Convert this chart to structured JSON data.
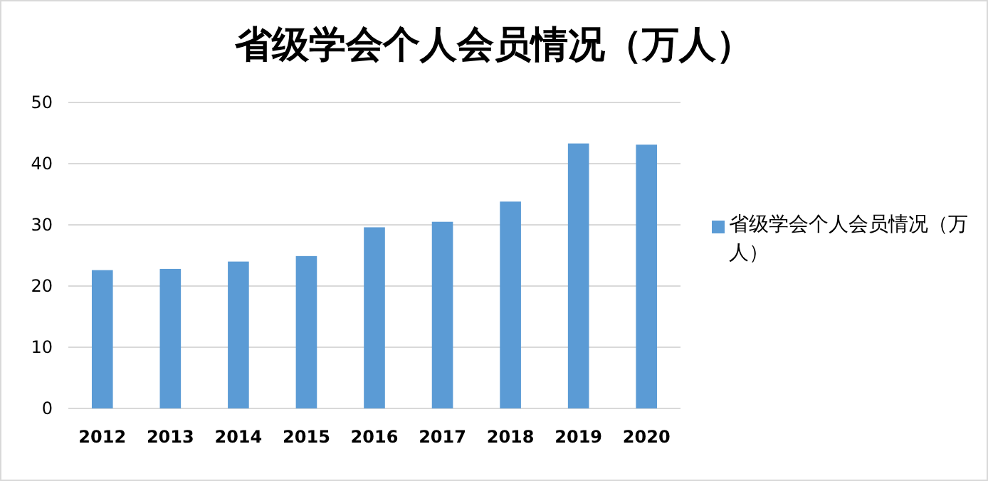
{
  "chart_data": {
    "type": "bar",
    "title": "省级学会个人会员情况（万人）",
    "categories": [
      "2012",
      "2013",
      "2014",
      "2015",
      "2016",
      "2017",
      "2018",
      "2019",
      "2020"
    ],
    "series": [
      {
        "name": "省级学会个人会员情况（万人）",
        "color": "#5b9bd5",
        "values": [
          22.6,
          22.8,
          24.0,
          24.9,
          29.6,
          30.5,
          33.8,
          43.3,
          43.1
        ]
      }
    ],
    "ylim": [
      0,
      50
    ],
    "yticks": [
      0,
      10,
      20,
      30,
      40,
      50
    ],
    "grid": "y",
    "legend": "right"
  }
}
